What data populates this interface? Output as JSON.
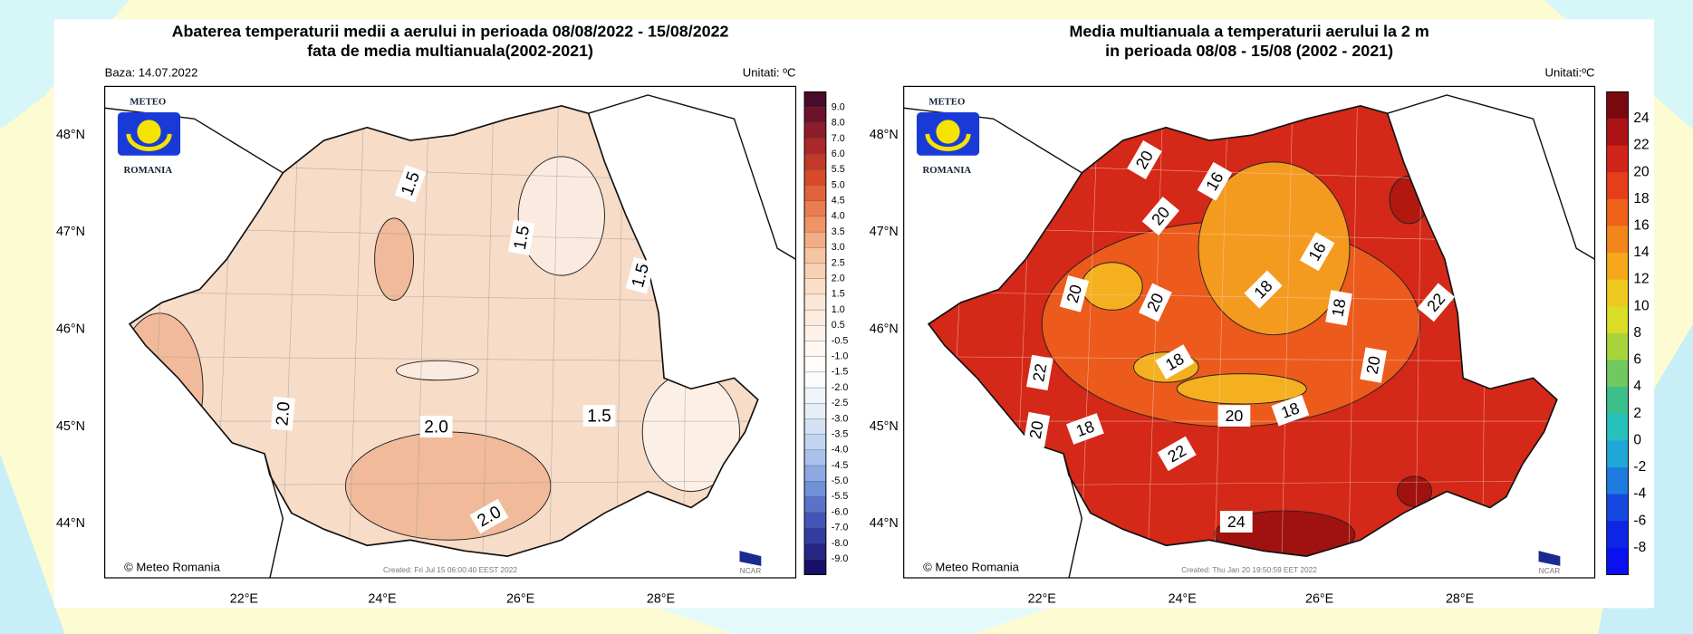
{
  "panels": [
    {
      "title": [
        "Abaterea temperaturii medii a aerului in perioada 08/08/2022 - 15/08/2022",
        "fata de media multianuala(2002-2021)"
      ],
      "base": "Baza: 14.07.2022",
      "units": "Unitati: ºC",
      "logo": {
        "top": "METEO",
        "bottom": "ROMANIA"
      },
      "lat_labels": [
        "48°N",
        "47°N",
        "46°N",
        "45°N",
        "44°N"
      ],
      "lon_labels": [
        "22°E",
        "24°E",
        "26°E",
        "28°E"
      ],
      "colorbar": [
        "9.0",
        "8.0",
        "7.0",
        "6.0",
        "5.5",
        "5.0",
        "4.5",
        "4.0",
        "3.5",
        "3.0",
        "2.5",
        "2.0",
        "1.5",
        "1.0",
        "0.5",
        "-0.5",
        "-1.0",
        "-1.5",
        "-2.0",
        "-2.5",
        "-3.0",
        "-3.5",
        "-4.0",
        "-4.5",
        "-5.0",
        "-5.5",
        "-6.0",
        "-7.0",
        "-8.0",
        "-9.0"
      ],
      "contour_labels": [
        "1.5",
        "1.5",
        "1.5",
        "2.0",
        "2.0",
        "1.5",
        "2.0"
      ],
      "credit": "© Meteo Romania",
      "created": "Created: Fri Jul 15 06:00:40 EEST 2022",
      "ncar": "NCAR"
    },
    {
      "title": [
        "Media multianuala a temperaturii aerului la 2 m",
        "in perioada 08/08 - 15/08 (2002 - 2021)"
      ],
      "units": "Unitati:ºC",
      "logo": {
        "top": "METEO",
        "bottom": "ROMANIA"
      },
      "lat_labels": [
        "48°N",
        "47°N",
        "46°N",
        "45°N",
        "44°N"
      ],
      "lon_labels": [
        "22°E",
        "24°E",
        "26°E",
        "28°E"
      ],
      "colorbar": [
        "24",
        "22",
        "20",
        "18",
        "16",
        "14",
        "12",
        "10",
        "8",
        "6",
        "4",
        "2",
        "0",
        "-2",
        "-4",
        "-6",
        "-8"
      ],
      "contour_labels": [
        "20",
        "16",
        "20",
        "16",
        "20",
        "20",
        "18",
        "18",
        "22",
        "22",
        "18",
        "20",
        "20",
        "18",
        "20",
        "18",
        "22",
        "24"
      ],
      "credit": "© Meteo Romania",
      "created": "Created: Thu Jan 20 19:50:59 EET 2022",
      "ncar": "NCAR"
    }
  ]
}
